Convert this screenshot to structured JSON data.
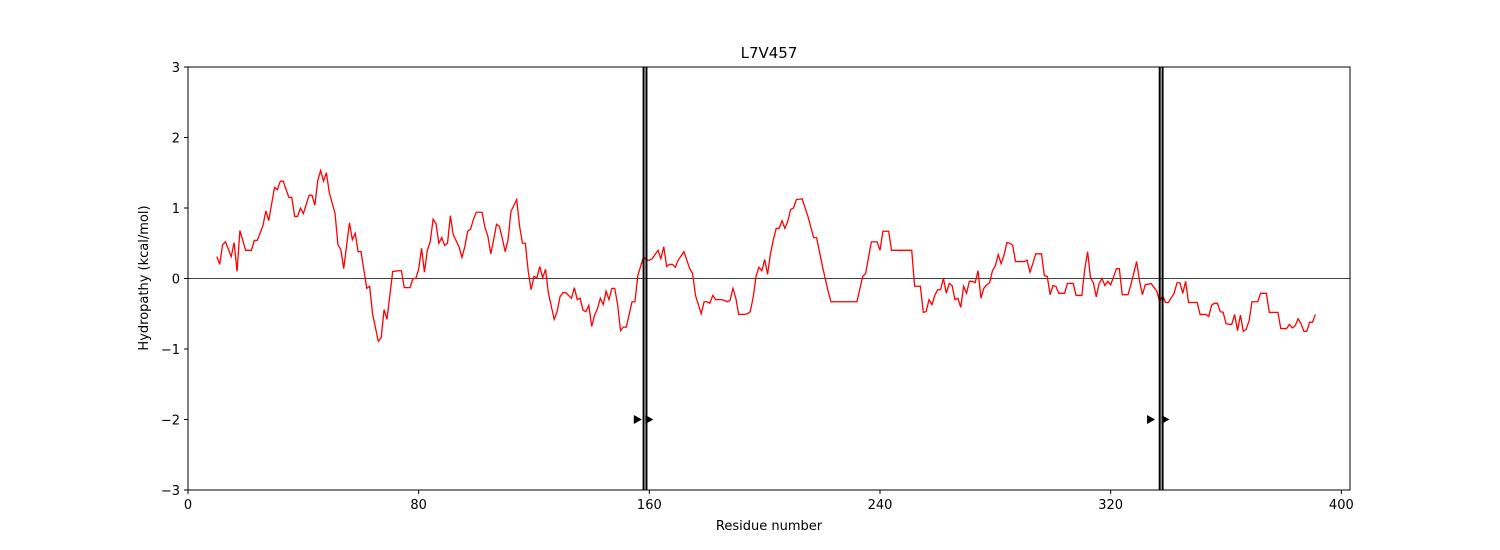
{
  "chart_data": {
    "type": "line",
    "title": "L7V457",
    "xlabel": "Residue number",
    "ylabel": "Hydropathy (kcal/mol)",
    "xlim": [
      0,
      403
    ],
    "ylim": [
      -3,
      3
    ],
    "xticks": [
      0,
      80,
      160,
      240,
      320,
      400
    ],
    "yticks": [
      {
        "value": -3,
        "label": "−3"
      },
      {
        "value": -2,
        "label": "−2"
      },
      {
        "value": -1,
        "label": "−1"
      },
      0,
      1,
      2,
      3
    ],
    "hline": 0,
    "vlines": [
      158,
      159,
      337,
      338
    ],
    "markers": {
      "x": [
        156,
        160,
        334,
        339
      ],
      "y": [
        -2,
        -2,
        -2,
        -2
      ],
      "color": "#000000"
    },
    "series": [
      {
        "color": "#ff0000",
        "x": [
          10,
          11,
          12,
          13,
          15,
          16,
          17,
          18,
          20,
          22,
          23,
          24,
          26,
          27,
          28,
          30,
          31,
          32,
          33,
          35,
          36,
          37,
          38,
          39,
          40,
          41,
          42,
          43,
          44,
          45,
          46,
          47,
          48,
          49,
          51,
          52,
          53,
          54,
          56,
          57,
          58,
          59,
          60,
          62,
          63,
          64,
          66,
          67,
          68,
          69,
          71,
          73,
          74,
          75,
          77,
          78,
          79,
          80,
          81,
          82,
          83,
          84,
          85,
          86,
          87,
          88,
          89,
          90,
          91,
          92,
          94,
          95,
          96,
          97,
          98,
          99,
          100,
          102,
          103,
          104,
          105,
          106,
          107,
          108,
          109,
          110,
          111,
          112,
          114,
          115,
          116,
          117,
          118,
          119,
          120,
          121,
          122,
          123,
          124,
          125,
          127,
          128,
          129,
          130,
          131,
          133,
          134,
          135,
          136,
          137,
          138,
          139,
          140,
          141,
          142,
          143,
          144,
          145,
          146,
          147,
          148,
          149,
          150,
          151,
          152,
          154,
          155,
          156,
          158,
          159,
          160,
          161,
          163,
          164,
          165,
          166,
          167,
          168,
          169,
          170,
          172,
          173,
          174,
          175,
          176,
          178,
          179,
          180,
          181,
          182,
          183,
          185,
          186,
          187,
          188,
          189,
          190,
          191,
          193,
          194,
          195,
          196,
          197,
          198,
          199,
          200,
          201,
          202,
          203,
          204,
          205,
          206,
          207,
          208,
          209,
          210,
          211,
          213,
          215,
          217,
          218,
          219,
          220,
          222,
          223,
          224,
          232,
          234,
          235,
          237,
          239,
          240,
          241,
          243,
          244,
          251,
          252,
          254,
          255,
          256,
          257,
          258,
          259,
          260,
          261,
          262,
          263,
          264,
          265,
          266,
          267,
          268,
          269,
          270,
          271,
          272,
          273,
          274,
          275,
          276,
          277,
          278,
          279,
          280,
          281,
          282,
          283,
          284,
          285,
          286,
          287,
          290,
          291,
          292,
          293,
          294,
          296,
          297,
          298,
          299,
          300,
          301,
          302,
          304,
          305,
          307,
          308,
          310,
          311,
          312,
          313,
          314,
          315,
          316,
          317,
          318,
          319,
          320,
          322,
          323,
          324,
          326,
          327,
          329,
          330,
          331,
          332,
          334,
          336,
          337,
          338,
          339,
          340,
          342,
          343,
          344,
          345,
          346,
          347,
          350,
          351,
          353,
          354,
          355,
          356,
          357,
          358,
          359,
          360,
          361,
          362,
          363,
          364,
          365,
          366,
          367,
          368,
          369,
          371,
          372,
          374,
          375,
          378,
          379,
          381,
          382,
          383,
          384,
          385,
          386,
          387,
          388,
          389,
          390,
          391
        ],
        "values": [
          0.31,
          0.2,
          0.48,
          0.52,
          0.31,
          0.51,
          0.1,
          0.68,
          0.4,
          0.4,
          0.54,
          0.54,
          0.75,
          0.96,
          0.82,
          1.29,
          1.26,
          1.38,
          1.38,
          1.15,
          1.15,
          0.88,
          0.88,
          1.0,
          0.92,
          1.05,
          1.18,
          1.18,
          1.04,
          1.39,
          1.53,
          1.38,
          1.5,
          1.22,
          0.92,
          0.48,
          0.41,
          0.14,
          0.79,
          0.55,
          0.64,
          0.38,
          0.38,
          -0.14,
          -0.11,
          -0.5,
          -0.89,
          -0.84,
          -0.44,
          -0.58,
          0.1,
          0.11,
          0.11,
          -0.13,
          -0.13,
          0,
          0,
          0.13,
          0.43,
          0.09,
          0.4,
          0.52,
          0.84,
          0.78,
          0.5,
          0.58,
          0.47,
          0.5,
          0.89,
          0.62,
          0.45,
          0.3,
          0.45,
          0.67,
          0.7,
          0.84,
          0.94,
          0.94,
          0.72,
          0.6,
          0.35,
          0.55,
          0.77,
          0.74,
          0.57,
          0.38,
          0.55,
          0.95,
          1.12,
          0.74,
          0.5,
          0.5,
          0.1,
          -0.16,
          0.03,
          0.01,
          0.17,
          0.01,
          0.13,
          -0.21,
          -0.58,
          -0.47,
          -0.26,
          -0.2,
          -0.2,
          -0.28,
          -0.13,
          -0.3,
          -0.28,
          -0.45,
          -0.47,
          -0.38,
          -0.68,
          -0.52,
          -0.43,
          -0.28,
          -0.37,
          -0.18,
          -0.3,
          -0.14,
          -0.14,
          -0.37,
          -0.74,
          -0.69,
          -0.69,
          -0.33,
          -0.33,
          0.04,
          0.31,
          0.26,
          0.26,
          0.28,
          0.4,
          0.28,
          0.45,
          0.17,
          0.2,
          0.2,
          0.16,
          0.26,
          0.38,
          0.26,
          0.14,
          0.07,
          -0.24,
          -0.5,
          -0.33,
          -0.33,
          -0.35,
          -0.24,
          -0.3,
          -0.3,
          -0.31,
          -0.33,
          -0.31,
          -0.14,
          -0.28,
          -0.51,
          -0.51,
          -0.5,
          -0.47,
          -0.27,
          0.03,
          0.16,
          0.11,
          0.27,
          0.06,
          0.35,
          0.55,
          0.71,
          0.71,
          0.82,
          0.71,
          0.81,
          0.98,
          1.0,
          1.12,
          1.13,
          0.88,
          0.58,
          0.58,
          0.38,
          0.18,
          -0.18,
          -0.33,
          -0.33,
          -0.33,
          0.03,
          0.07,
          0.52,
          0.52,
          0.4,
          0.67,
          0.67,
          0.4,
          0.4,
          -0.11,
          -0.11,
          -0.48,
          -0.47,
          -0.3,
          -0.37,
          -0.24,
          -0.16,
          -0.16,
          0,
          -0.21,
          -0.07,
          -0.1,
          -0.3,
          -0.28,
          -0.41,
          -0.11,
          -0.21,
          -0.04,
          -0.04,
          -0.06,
          0.11,
          -0.28,
          -0.14,
          -0.09,
          -0.06,
          0.11,
          0.18,
          0.34,
          0.21,
          0.33,
          0.51,
          0.5,
          0.47,
          0.24,
          0.24,
          0.26,
          0.09,
          0.21,
          0.35,
          0.35,
          0.04,
          0.03,
          -0.23,
          -0.1,
          -0.11,
          -0.21,
          -0.21,
          -0.07,
          -0.07,
          -0.24,
          -0.24,
          0.13,
          0.38,
          0.01,
          -0.06,
          -0.26,
          -0.07,
          0,
          -0.1,
          -0.04,
          -0.09,
          0.14,
          0.14,
          -0.23,
          -0.23,
          -0.09,
          0.24,
          -0.03,
          -0.23,
          -0.09,
          -0.07,
          -0.18,
          -0.33,
          -0.24,
          -0.34,
          -0.34,
          -0.21,
          -0.06,
          -0.06,
          -0.21,
          -0.04,
          -0.34,
          -0.34,
          -0.51,
          -0.51,
          -0.54,
          -0.38,
          -0.35,
          -0.35,
          -0.47,
          -0.48,
          -0.64,
          -0.65,
          -0.65,
          -0.51,
          -0.74,
          -0.52,
          -0.75,
          -0.72,
          -0.6,
          -0.33,
          -0.33,
          -0.21,
          -0.21,
          -0.48,
          -0.48,
          -0.71,
          -0.71,
          -0.65,
          -0.7,
          -0.67,
          -0.57,
          -0.64,
          -0.75,
          -0.75,
          -0.62,
          -0.62,
          -0.51
        ]
      }
    ]
  }
}
